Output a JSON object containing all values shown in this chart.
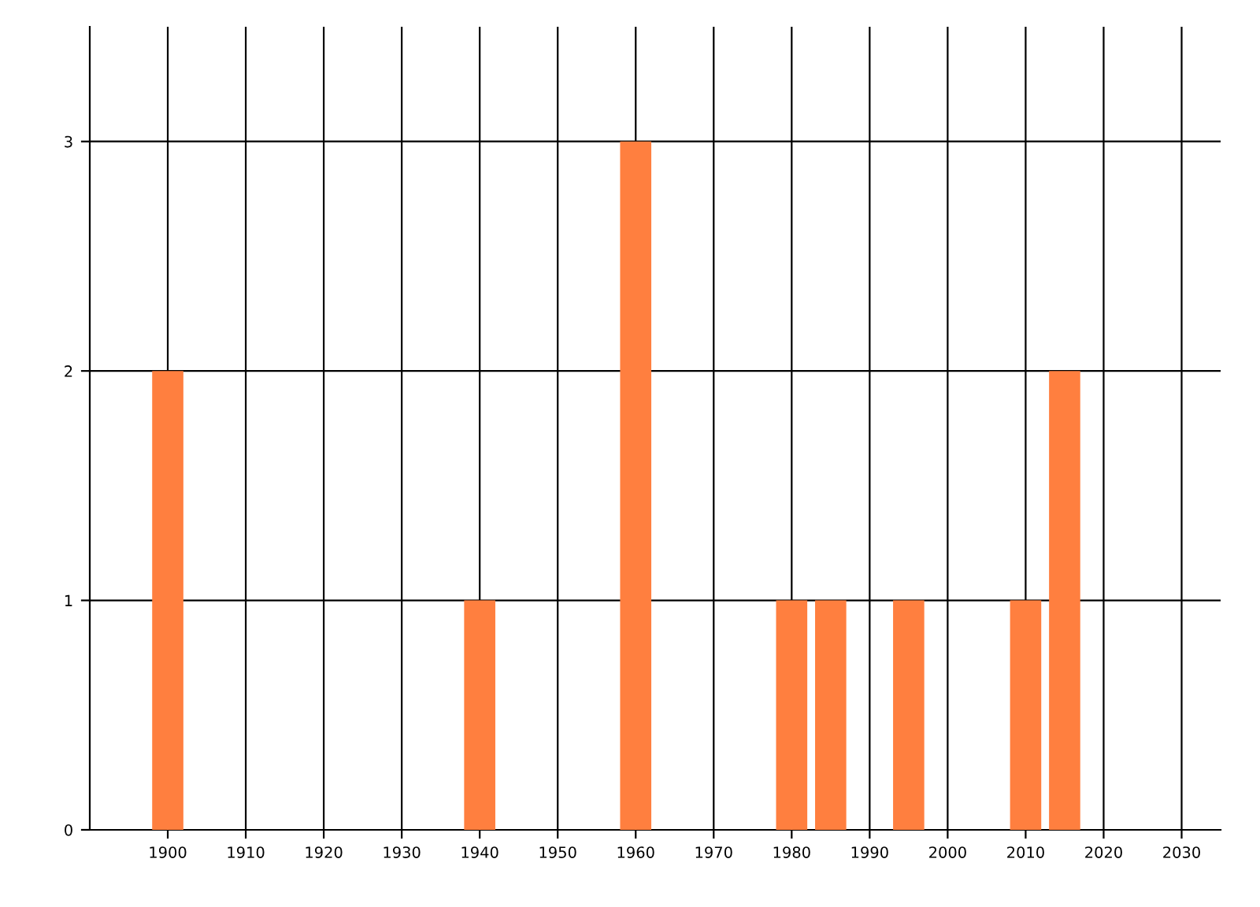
{
  "chart_data": {
    "type": "bar",
    "x": [
      1900,
      1940,
      1960,
      1980,
      1985,
      1995,
      2010,
      2015
    ],
    "values": [
      2,
      1,
      3,
      1,
      1,
      1,
      1,
      2
    ],
    "color": "#ff7f3f",
    "xlim": [
      1890,
      2035
    ],
    "xticks": [
      1900,
      1910,
      1920,
      1930,
      1940,
      1950,
      1960,
      1970,
      1980,
      1990,
      2000,
      2010,
      2020,
      2030
    ],
    "ylim": [
      0,
      3.5
    ],
    "yticks": [
      0,
      1,
      2,
      3
    ],
    "grid": true
  }
}
